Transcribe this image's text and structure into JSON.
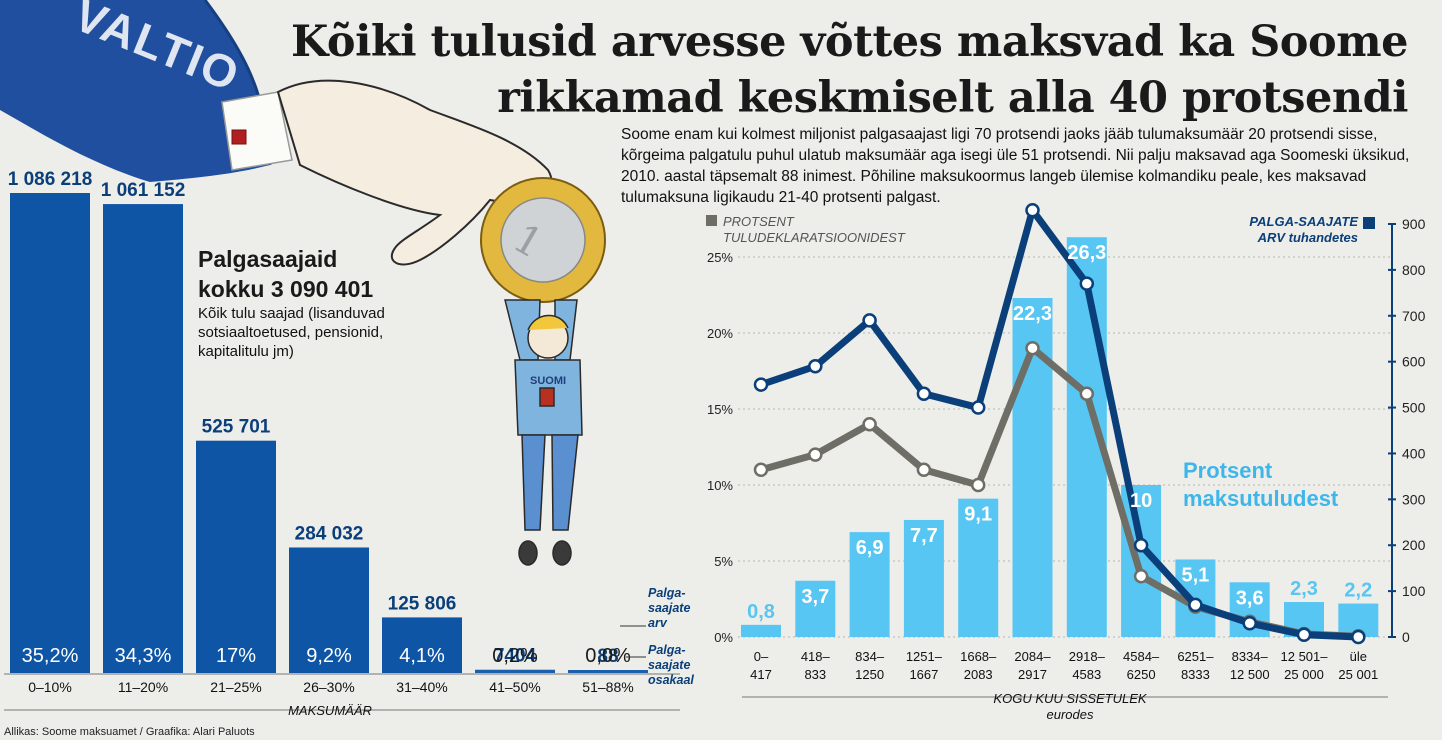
{
  "title": {
    "line1": "Kõiki tulusid arvesse võttes maksvad ka Soome",
    "line2": "rikkamad keskmiselt alla 40 protsendi"
  },
  "intro": "Soome enam kui kolmest miljonist palgasaajast ligi 70 protsendi jaoks jääb tulumaksumäär 20 protsendi sisse, kõrgeima palgatulu puhul ulatub maksumäär aga isegi üle 51 protsendi. Nii palju maksavad aga Soomeski üksikud, 2010. aastal täpsemalt 88 inimest. Põhiline maksukoormus langeb ülemise kolmandiku peale, kes maksavad tulumaksuna ligikaudu 21-40 protsenti palgast.",
  "illustration": {
    "sleeve_text": "VALTIO",
    "shirt_text": "SUOMI"
  },
  "left": {
    "total_line1": "Palgasaajaid",
    "total_line2": "kokku 3 090 401",
    "note": "Kõik tulu saajad (lisanduvad sotsiaaltoetused, pensionid, kapitalitulu jm)",
    "label_count": "Palga-saajate arv",
    "label_share": "Palga-saajate osakaal",
    "axis_title": "MAKSUMÄÄR"
  },
  "right": {
    "legend_left": "PROTSENT TULUDEKLARATSIOONIDEST",
    "legend_right": "PALGA-SAAJATE ARV tuhandetes",
    "bars_label_1": "Protsent",
    "bars_label_2": "maksutuludest",
    "axis_title_1": "KOGU KUU SISSETULEK",
    "axis_title_2": "eurodes"
  },
  "credit": "Allikas: Soome maksuamet / Graafika: Alari Paluots",
  "colors": {
    "dark_blue": "#0f55a5",
    "navy": "#0a3f7a",
    "light_blue": "#57c6f2",
    "grey": "#6e6e66",
    "sleeve": "#1f4f9e",
    "coin_gold": "#e3b83e"
  },
  "chart_data": [
    {
      "type": "bar",
      "categories": [
        "0–10%",
        "11–20%",
        "21–25%",
        "26–30%",
        "31–40%",
        "41–50%",
        "51–88%"
      ],
      "series": [
        {
          "name": "Palgasaajate arv",
          "values": [
            1086218,
            1061152,
            525701,
            284032,
            125806,
            7404,
            88
          ],
          "labels": [
            "1 086 218",
            "1 061 152",
            "525 701",
            "284 032",
            "125 806",
            "7404",
            "88"
          ]
        },
        {
          "name": "Palgasaajate osakaal",
          "values": [
            35.2,
            34.3,
            17,
            9.2,
            4.1,
            0.2,
            0.0
          ],
          "labels": [
            "35,2%",
            "34,3%",
            "17%",
            "9,2%",
            "4,1%",
            "0,2%",
            "0,0%"
          ]
        }
      ],
      "xlabel": "MAKSUMÄÄR"
    },
    {
      "type": "bar",
      "categories": [
        "0–417",
        "418–833",
        "834–1250",
        "1251–1667",
        "1668–2083",
        "2084–2917",
        "2918–4583",
        "4584–6250",
        "6251–8333",
        "8334–12 500",
        "12 501–25 000",
        "üle 25 001"
      ],
      "category_lines": [
        [
          "0–",
          "417"
        ],
        [
          "418–",
          "833"
        ],
        [
          "834–",
          "1250"
        ],
        [
          "1251–",
          "1667"
        ],
        [
          "1668–",
          "2083"
        ],
        [
          "2084–",
          "2917"
        ],
        [
          "2918–",
          "4583"
        ],
        [
          "4584–",
          "6250"
        ],
        [
          "6251–",
          "8333"
        ],
        [
          "8334–",
          "12 500"
        ],
        [
          "12 501–",
          "25 000"
        ],
        [
          "üle",
          "25 001"
        ]
      ],
      "series": [
        {
          "name": "Protsent maksutuludest",
          "kind": "bar",
          "axis": "left",
          "values": [
            0.8,
            3.7,
            6.9,
            7.7,
            9.1,
            22.3,
            26.3,
            10,
            5.1,
            3.6,
            2.3,
            2.2
          ],
          "labels": [
            "0,8",
            "3,7",
            "6,9",
            "7,7",
            "9,1",
            "22,3",
            "26,3",
            "10",
            "5,1",
            "3,6",
            "2,3",
            "2,2"
          ]
        },
        {
          "name": "PROTSENT TULUDEKLARATSIOONIDEST",
          "kind": "line",
          "axis": "left",
          "values": [
            11,
            12,
            14,
            11,
            10,
            19,
            16,
            4,
            2,
            1,
            0.2,
            0.05
          ]
        },
        {
          "name": "PALGASAAJATE ARV tuhandetes",
          "kind": "line",
          "axis": "right",
          "values": [
            550,
            590,
            690,
            530,
            500,
            930,
            770,
            200,
            70,
            30,
            5,
            0
          ]
        }
      ],
      "y_left_ticks": [
        "0%",
        "5%",
        "10%",
        "15%",
        "20%",
        "25%"
      ],
      "y_left_lim": [
        0,
        25
      ],
      "y_right_ticks": [
        "0",
        "100",
        "200",
        "300",
        "400",
        "500",
        "600",
        "700",
        "800",
        "900"
      ],
      "y_right_lim": [
        0,
        900
      ],
      "xlabel": "KOGU KUU SISSETULEK eurodes"
    }
  ]
}
